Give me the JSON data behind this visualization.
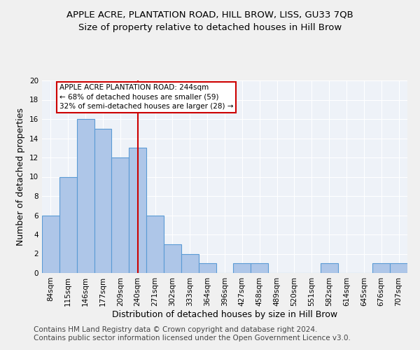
{
  "title": "APPLE ACRE, PLANTATION ROAD, HILL BROW, LISS, GU33 7QB",
  "subtitle": "Size of property relative to detached houses in Hill Brow",
  "xlabel": "Distribution of detached houses by size in Hill Brow",
  "ylabel": "Number of detached properties",
  "categories": [
    "84sqm",
    "115sqm",
    "146sqm",
    "177sqm",
    "209sqm",
    "240sqm",
    "271sqm",
    "302sqm",
    "333sqm",
    "364sqm",
    "396sqm",
    "427sqm",
    "458sqm",
    "489sqm",
    "520sqm",
    "551sqm",
    "582sqm",
    "614sqm",
    "645sqm",
    "676sqm",
    "707sqm"
  ],
  "values": [
    6,
    10,
    16,
    15,
    12,
    13,
    6,
    3,
    2,
    1,
    0,
    1,
    1,
    0,
    0,
    0,
    1,
    0,
    0,
    1,
    1
  ],
  "bar_color": "#aec6e8",
  "bar_edge_color": "#5b9bd5",
  "vline_x_index": 5,
  "vline_color": "#cc0000",
  "annotation_line1": "APPLE ACRE PLANTATION ROAD: 244sqm",
  "annotation_line2": "← 68% of detached houses are smaller (59)",
  "annotation_line3": "32% of semi-detached houses are larger (28) →",
  "annotation_box_color": "#ffffff",
  "annotation_box_edge_color": "#cc0000",
  "ylim": [
    0,
    20
  ],
  "yticks": [
    0,
    2,
    4,
    6,
    8,
    10,
    12,
    14,
    16,
    18,
    20
  ],
  "background_color": "#eef2f8",
  "grid_color": "#ffffff",
  "footer": "Contains HM Land Registry data © Crown copyright and database right 2024.\nContains public sector information licensed under the Open Government Licence v3.0.",
  "title_fontsize": 9.5,
  "subtitle_fontsize": 9.5,
  "axis_label_fontsize": 9,
  "tick_fontsize": 7.5,
  "footer_fontsize": 7.5
}
